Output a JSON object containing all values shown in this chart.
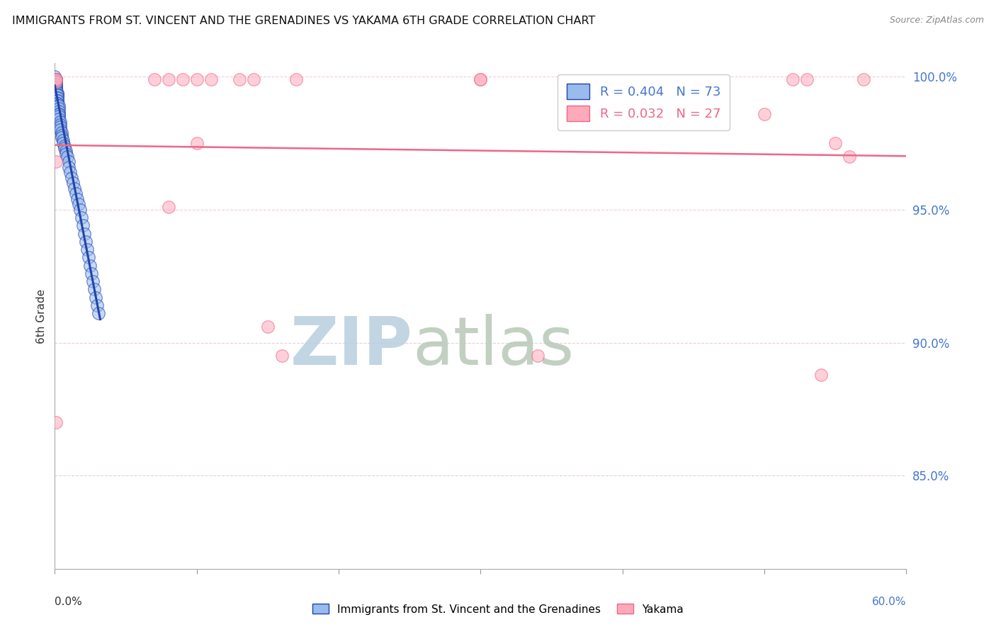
{
  "title": "IMMIGRANTS FROM ST. VINCENT AND THE GRENADINES VS YAKAMA 6TH GRADE CORRELATION CHART",
  "source": "Source: ZipAtlas.com",
  "ylabel": "6th Grade",
  "ytick_labels": [
    "100.0%",
    "95.0%",
    "90.0%",
    "85.0%"
  ],
  "ytick_values": [
    1.0,
    0.95,
    0.9,
    0.85
  ],
  "xlim": [
    0.0,
    0.6
  ],
  "ylim": [
    0.815,
    1.005
  ],
  "blue_R": 0.404,
  "blue_N": 73,
  "pink_R": 0.032,
  "pink_N": 27,
  "blue_color": "#99BBEE",
  "pink_color": "#FFAABB",
  "blue_line_color": "#2244AA",
  "pink_line_color": "#EE6688",
  "watermark_zip": "ZIP",
  "watermark_atlas": "atlas",
  "watermark_color_zip": "#C8DCEF",
  "watermark_color_atlas": "#C8D8C8",
  "blue_scatter_x": [
    0.0,
    0.0,
    0.0,
    0.001,
    0.001,
    0.001,
    0.001,
    0.001,
    0.001,
    0.001,
    0.001,
    0.001,
    0.001,
    0.001,
    0.001,
    0.001,
    0.001,
    0.001,
    0.002,
    0.002,
    0.002,
    0.002,
    0.002,
    0.002,
    0.002,
    0.002,
    0.002,
    0.002,
    0.002,
    0.003,
    0.003,
    0.003,
    0.003,
    0.003,
    0.003,
    0.003,
    0.004,
    0.004,
    0.004,
    0.004,
    0.005,
    0.005,
    0.005,
    0.006,
    0.006,
    0.007,
    0.007,
    0.008,
    0.008,
    0.009,
    0.01,
    0.01,
    0.011,
    0.012,
    0.013,
    0.014,
    0.015,
    0.016,
    0.017,
    0.018,
    0.019,
    0.02,
    0.021,
    0.022,
    0.023,
    0.024,
    0.025,
    0.026,
    0.027,
    0.028,
    0.029,
    0.03,
    0.031
  ],
  "blue_scatter_y": [
    1.0,
    0.999,
    0.999,
    0.999,
    0.999,
    0.998,
    0.998,
    0.998,
    0.998,
    0.997,
    0.997,
    0.997,
    0.996,
    0.996,
    0.996,
    0.995,
    0.995,
    0.994,
    0.994,
    0.993,
    0.993,
    0.993,
    0.992,
    0.992,
    0.991,
    0.991,
    0.99,
    0.99,
    0.989,
    0.989,
    0.988,
    0.987,
    0.986,
    0.986,
    0.985,
    0.984,
    0.983,
    0.982,
    0.981,
    0.98,
    0.979,
    0.978,
    0.977,
    0.976,
    0.975,
    0.974,
    0.973,
    0.972,
    0.971,
    0.97,
    0.968,
    0.966,
    0.964,
    0.962,
    0.96,
    0.958,
    0.956,
    0.954,
    0.952,
    0.95,
    0.947,
    0.944,
    0.941,
    0.938,
    0.935,
    0.932,
    0.929,
    0.926,
    0.923,
    0.92,
    0.917,
    0.914,
    0.911
  ],
  "pink_scatter_x": [
    0.001,
    0.001,
    0.001,
    0.001,
    0.001,
    0.07,
    0.08,
    0.08,
    0.09,
    0.1,
    0.1,
    0.11,
    0.13,
    0.14,
    0.15,
    0.16,
    0.17,
    0.3,
    0.3,
    0.34,
    0.5,
    0.52,
    0.53,
    0.54,
    0.55,
    0.56,
    0.57
  ],
  "pink_scatter_y": [
    0.999,
    0.998,
    0.999,
    0.968,
    0.87,
    0.999,
    0.999,
    0.951,
    0.999,
    0.999,
    0.975,
    0.999,
    0.999,
    0.999,
    0.906,
    0.895,
    0.999,
    0.999,
    0.999,
    0.895,
    0.986,
    0.999,
    0.999,
    0.888,
    0.975,
    0.97,
    0.999
  ]
}
